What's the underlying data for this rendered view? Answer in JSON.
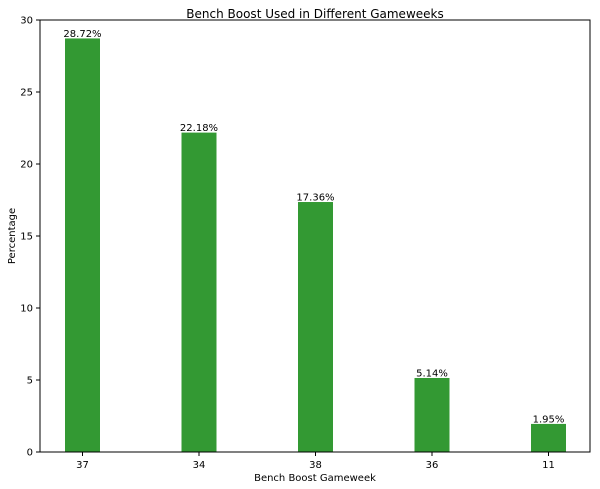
{
  "chart_data": {
    "type": "bar",
    "title": "Bench Boost Used in Different Gameweeks",
    "xlabel": "Bench Boost Gameweek",
    "ylabel": "Percentage",
    "categories": [
      "37",
      "34",
      "38",
      "36",
      "11"
    ],
    "values": [
      28.72,
      22.18,
      17.36,
      5.14,
      1.95
    ],
    "data_labels": [
      "28.72%",
      "22.18%",
      "17.36%",
      "5.14%",
      "1.95%"
    ],
    "ylim": [
      0,
      30
    ],
    "yticks": [
      0,
      5,
      10,
      15,
      20,
      25,
      30
    ],
    "bar_color": "#339933",
    "grid": false,
    "legend": "none"
  }
}
